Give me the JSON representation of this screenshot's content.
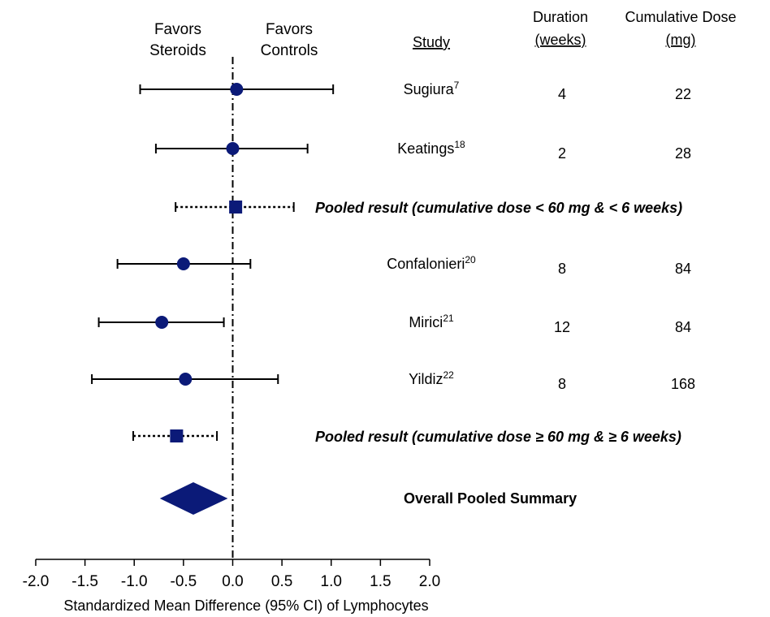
{
  "chart_data": {
    "type": "forest",
    "xlabel": "Standardized Mean Difference (95% CI) of Lymphocytes",
    "xlim": [
      -2.0,
      2.0
    ],
    "xticks": [
      "-2.0",
      "-1.5",
      "-1.0",
      "-0.5",
      "0.0",
      "0.5",
      "1.0",
      "1.5",
      "2.0"
    ],
    "favors_left": [
      "Favors",
      "Steroids"
    ],
    "favors_right": [
      "Favors",
      "Controls"
    ],
    "column_headers": {
      "study": "Study",
      "duration": [
        "Duration",
        "(weeks)"
      ],
      "dose": [
        "Cumulative Dose",
        "(mg)"
      ]
    },
    "rows": [
      {
        "kind": "study",
        "name": "Sugiura",
        "ref": "7",
        "duration": "4",
        "dose": "22",
        "estimate": 0.04,
        "ci": [
          -0.94,
          1.02
        ]
      },
      {
        "kind": "study",
        "name": "Keatings",
        "ref": "18",
        "duration": "2",
        "dose": "28",
        "estimate": 0.0,
        "ci": [
          -0.78,
          0.76
        ]
      },
      {
        "kind": "pooled",
        "label": "Pooled result (cumulative dose < 60 mg & < 6 weeks)",
        "estimate": 0.03,
        "ci": [
          -0.58,
          0.62
        ]
      },
      {
        "kind": "study",
        "name": "Confalonieri",
        "ref": "20",
        "duration": "8",
        "dose": "84",
        "estimate": -0.5,
        "ci": [
          -1.17,
          0.18
        ]
      },
      {
        "kind": "study",
        "name": "Mirici",
        "ref": "21",
        "duration": "12",
        "dose": "84",
        "estimate": -0.72,
        "ci": [
          -1.36,
          -0.09
        ]
      },
      {
        "kind": "study",
        "name": "Yildiz",
        "ref": "22",
        "duration": "8",
        "dose": "168",
        "estimate": -0.48,
        "ci": [
          -1.43,
          0.46
        ]
      },
      {
        "kind": "pooled",
        "label": "Pooled result (cumulative dose ≥ 60 mg & ≥ 6 weeks)",
        "estimate": -0.57,
        "ci": [
          -1.01,
          -0.16
        ]
      },
      {
        "kind": "overall",
        "label": "Overall Pooled Summary",
        "estimate": -0.4,
        "ci": [
          -0.74,
          -0.05
        ]
      }
    ]
  }
}
